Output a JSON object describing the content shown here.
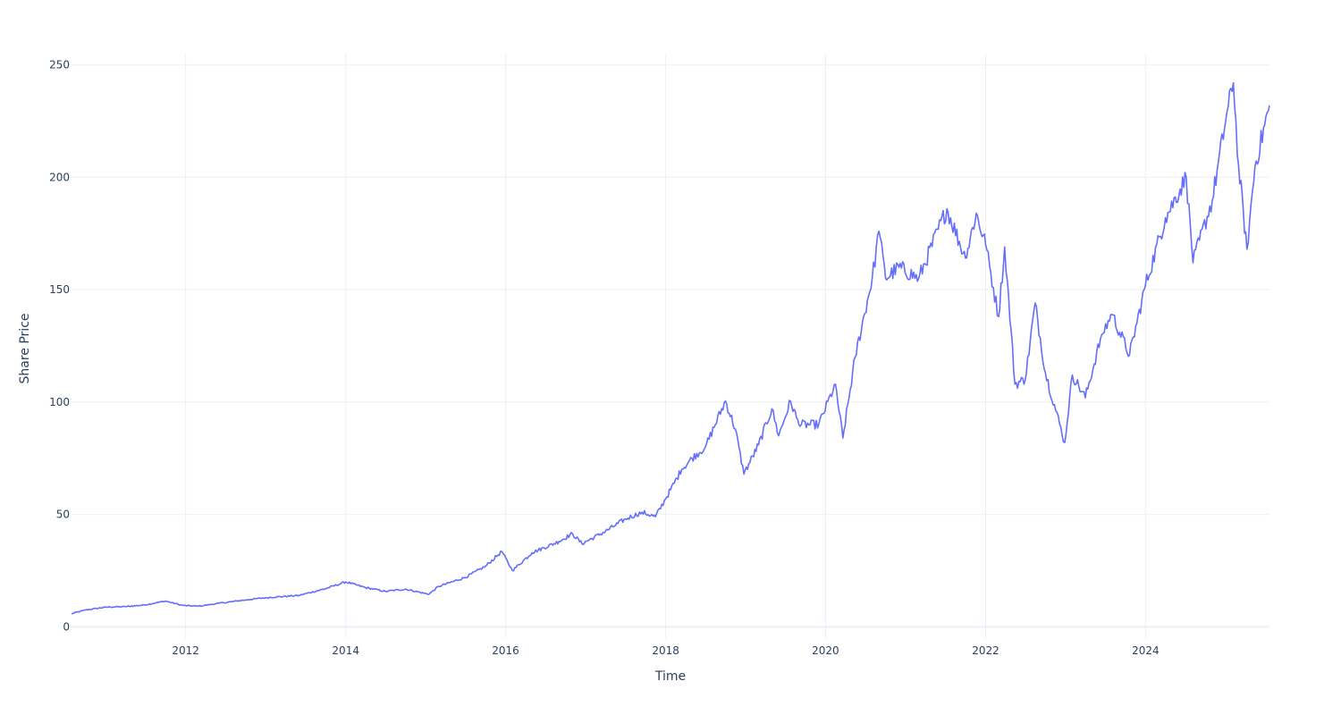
{
  "chart_data": {
    "type": "line",
    "title": "",
    "xlabel": "Time",
    "ylabel": "Share Price",
    "xlim": [
      "2010-07-29",
      "2025-07-20"
    ],
    "ylim": [
      -5,
      255
    ],
    "grid": true,
    "legend": "none",
    "x_ticks": [
      {
        "date": "2012-01-01",
        "label": "2012"
      },
      {
        "date": "2014-01-01",
        "label": "2014"
      },
      {
        "date": "2016-01-01",
        "label": "2016"
      },
      {
        "date": "2018-01-01",
        "label": "2018"
      },
      {
        "date": "2020-01-01",
        "label": "2020"
      },
      {
        "date": "2022-01-01",
        "label": "2022"
      },
      {
        "date": "2024-01-01",
        "label": "2024"
      }
    ],
    "y_ticks": [
      {
        "value": 0,
        "label": "0"
      },
      {
        "value": 50,
        "label": "50"
      },
      {
        "value": 100,
        "label": "100"
      },
      {
        "value": 150,
        "label": "150"
      },
      {
        "value": 200,
        "label": "200"
      },
      {
        "value": 250,
        "label": "250"
      }
    ],
    "series": [
      {
        "color": "#636efa",
        "points": [
          [
            "2010-07-29",
            5.9
          ],
          [
            "2010-10-01",
            7.5
          ],
          [
            "2011-01-01",
            8.8
          ],
          [
            "2011-04-01",
            9.0
          ],
          [
            "2011-07-01",
            9.8
          ],
          [
            "2011-10-01",
            11.5
          ],
          [
            "2011-12-20",
            9.5
          ],
          [
            "2012-03-01",
            9.2
          ],
          [
            "2012-06-01",
            10.5
          ],
          [
            "2012-10-01",
            12.0
          ],
          [
            "2013-01-01",
            13.0
          ],
          [
            "2013-06-01",
            14.0
          ],
          [
            "2013-10-01",
            17.0
          ],
          [
            "2014-01-01",
            20.0
          ],
          [
            "2014-04-01",
            17.5
          ],
          [
            "2014-07-01",
            15.8
          ],
          [
            "2014-10-01",
            16.8
          ],
          [
            "2015-01-15",
            14.5
          ],
          [
            "2015-03-01",
            18.0
          ],
          [
            "2015-07-01",
            22.0
          ],
          [
            "2015-10-01",
            27.0
          ],
          [
            "2015-12-15",
            33.5
          ],
          [
            "2016-02-01",
            25.0
          ],
          [
            "2016-05-01",
            33.0
          ],
          [
            "2016-09-01",
            38.0
          ],
          [
            "2016-11-01",
            41.5
          ],
          [
            "2016-12-15",
            37.0
          ],
          [
            "2017-04-01",
            42.5
          ],
          [
            "2017-07-01",
            48.0
          ],
          [
            "2017-09-15",
            51.0
          ],
          [
            "2017-11-15",
            49.0
          ],
          [
            "2018-01-01",
            57.0
          ],
          [
            "2018-03-15",
            70.0
          ],
          [
            "2018-05-01",
            75.0
          ],
          [
            "2018-07-01",
            80.0
          ],
          [
            "2018-10-01",
            100.5
          ],
          [
            "2018-11-15",
            88.0
          ],
          [
            "2018-12-24",
            68.0
          ],
          [
            "2019-03-01",
            81.0
          ],
          [
            "2019-05-01",
            97.0
          ],
          [
            "2019-06-01",
            85.0
          ],
          [
            "2019-07-25",
            100.5
          ],
          [
            "2019-09-01",
            90.0
          ],
          [
            "2019-12-01",
            90.0
          ],
          [
            "2020-02-15",
            108.0
          ],
          [
            "2020-03-20",
            84.0
          ],
          [
            "2020-05-15",
            120.0
          ],
          [
            "2020-08-01",
            155.0
          ],
          [
            "2020-09-01",
            176.0
          ],
          [
            "2020-10-01",
            155.0
          ],
          [
            "2020-12-01",
            160.0
          ],
          [
            "2021-03-01",
            155.0
          ],
          [
            "2021-07-08",
            186.0
          ],
          [
            "2021-10-01",
            164.0
          ],
          [
            "2021-11-19",
            184.0
          ],
          [
            "2022-01-01",
            170.0
          ],
          [
            "2022-03-01",
            138.0
          ],
          [
            "2022-03-29",
            169.0
          ],
          [
            "2022-05-15",
            108.0
          ],
          [
            "2022-07-01",
            110.0
          ],
          [
            "2022-08-15",
            144.0
          ],
          [
            "2022-10-01",
            113.0
          ],
          [
            "2022-12-28",
            82.0
          ],
          [
            "2023-02-01",
            112.0
          ],
          [
            "2023-04-01",
            102.0
          ],
          [
            "2023-06-15",
            130.0
          ],
          [
            "2023-08-01",
            139.0
          ],
          [
            "2023-10-20",
            121.0
          ],
          [
            "2024-01-01",
            152.0
          ],
          [
            "2024-04-01",
            182.0
          ],
          [
            "2024-07-05",
            200.0
          ],
          [
            "2024-08-05",
            162.0
          ],
          [
            "2024-11-01",
            190.0
          ],
          [
            "2025-01-01",
            225.0
          ],
          [
            "2025-02-05",
            242.0
          ],
          [
            "2025-03-01",
            205.0
          ],
          [
            "2025-04-08",
            168.0
          ],
          [
            "2025-05-15",
            205.0
          ],
          [
            "2025-07-20",
            232.0
          ]
        ]
      }
    ]
  }
}
